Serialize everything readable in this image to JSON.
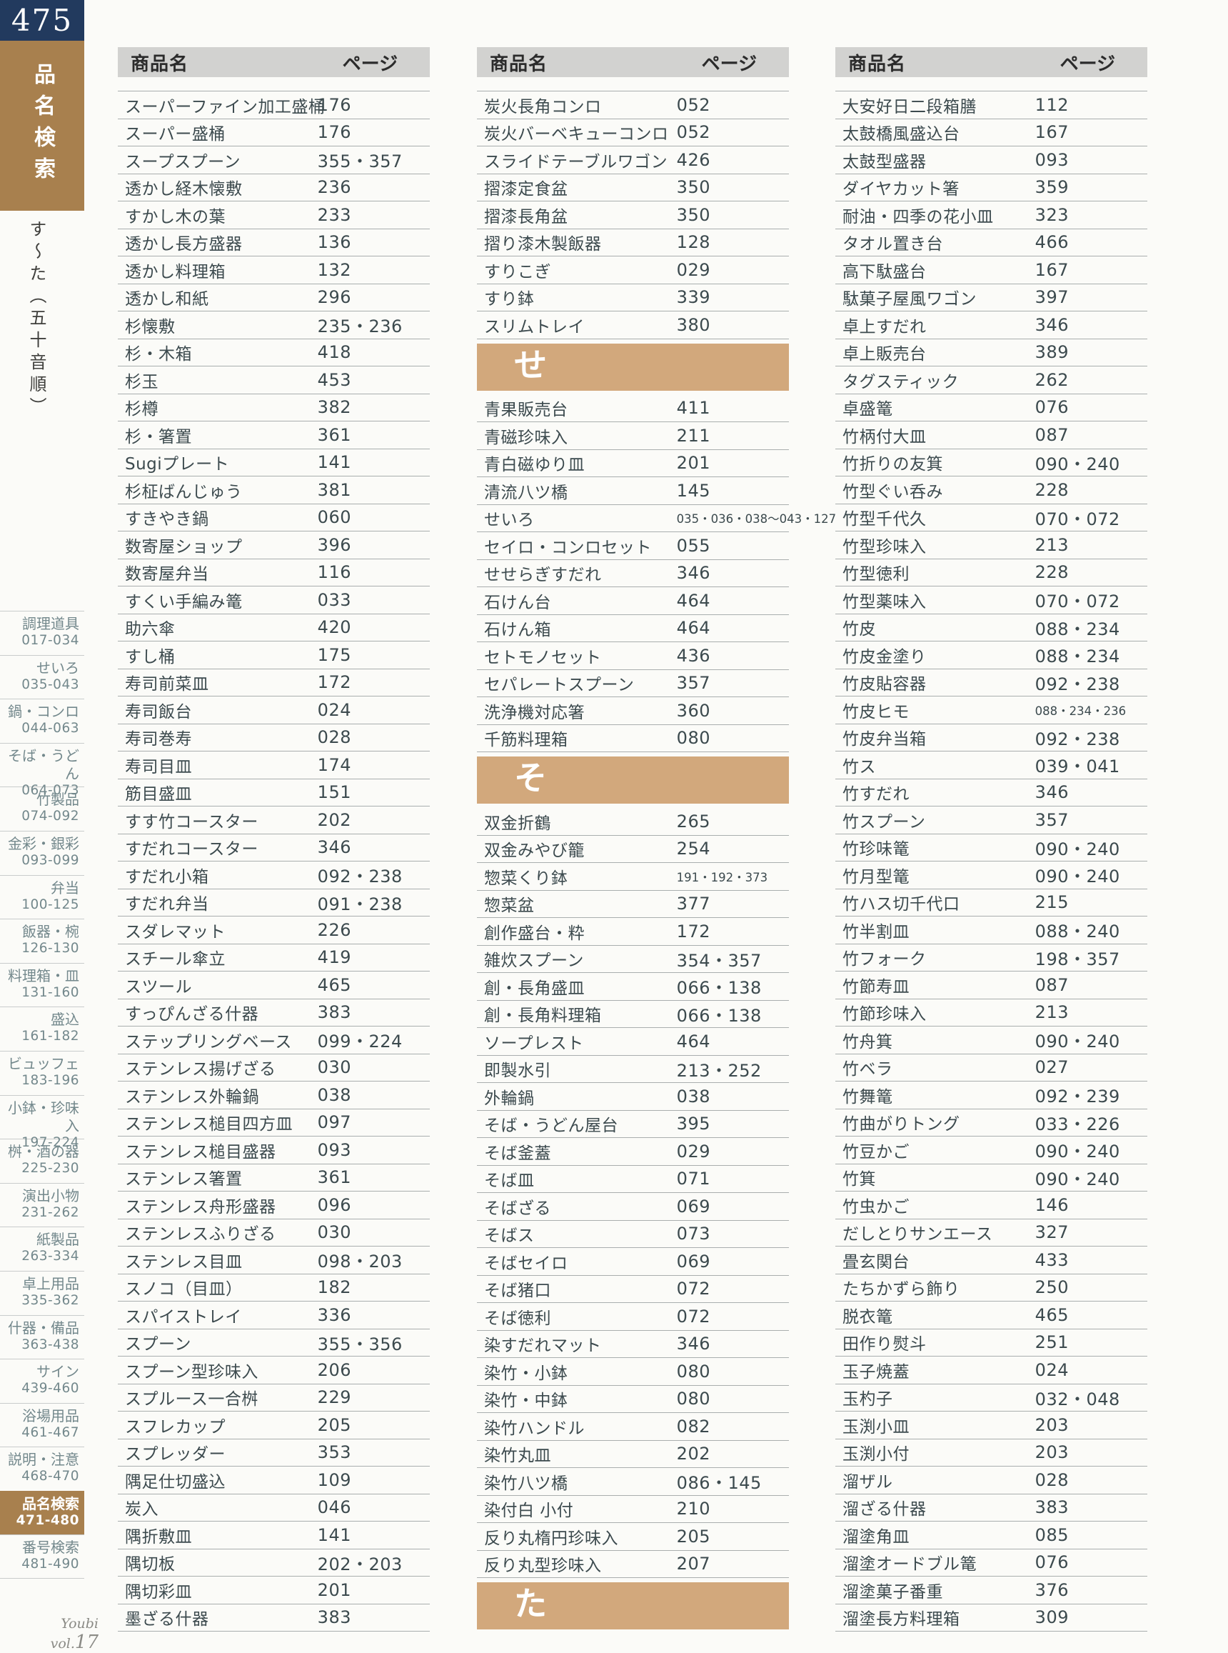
{
  "colors": {
    "navy": "#223a5e",
    "brown": "#a8804e",
    "tan": "#d2a87c",
    "header_bg": "#d2d2d0",
    "row_text": "#3c4a4e",
    "line": "#a9aeae",
    "category_text": "#73888c",
    "background": "#fbfbf8"
  },
  "sidebar": {
    "page_number": "475",
    "title": "品名検索",
    "subtitle": "す〜た（五十音順）",
    "footer_label": "Youbi vol.",
    "footer_number": "17",
    "categories": [
      {
        "label": "調理道具",
        "range": "017-034",
        "active": false
      },
      {
        "label": "せいろ",
        "range": "035-043",
        "active": false
      },
      {
        "label": "鍋・コンロ",
        "range": "044-063",
        "active": false
      },
      {
        "label": "そば・うどん",
        "range": "064-073",
        "active": false
      },
      {
        "label": "竹製品",
        "range": "074-092",
        "active": false
      },
      {
        "label": "金彩・銀彩",
        "range": "093-099",
        "active": false
      },
      {
        "label": "弁当",
        "range": "100-125",
        "active": false
      },
      {
        "label": "飯器・椀",
        "range": "126-130",
        "active": false
      },
      {
        "label": "料理箱・皿",
        "range": "131-160",
        "active": false
      },
      {
        "label": "盛込",
        "range": "161-182",
        "active": false
      },
      {
        "label": "ビュッフェ",
        "range": "183-196",
        "active": false
      },
      {
        "label": "小鉢・珍味入",
        "range": "197-224",
        "active": false
      },
      {
        "label": "桝・酒の器",
        "range": "225-230",
        "active": false
      },
      {
        "label": "演出小物",
        "range": "231-262",
        "active": false
      },
      {
        "label": "紙製品",
        "range": "263-334",
        "active": false
      },
      {
        "label": "卓上用品",
        "range": "335-362",
        "active": false
      },
      {
        "label": "什器・備品",
        "range": "363-438",
        "active": false
      },
      {
        "label": "サイン",
        "range": "439-460",
        "active": false
      },
      {
        "label": "浴場用品",
        "range": "461-467",
        "active": false
      },
      {
        "label": "説明・注意",
        "range": "468-470",
        "active": false
      },
      {
        "label": "品名検索",
        "range": "471-480",
        "active": true
      },
      {
        "label": "番号検索",
        "range": "481-490",
        "active": false
      }
    ]
  },
  "columns": [
    {
      "header": {
        "product": "商品名",
        "page": "ページ"
      },
      "items": [
        {
          "type": "row",
          "name": "スーパーファイン加工盛桶",
          "page": "176"
        },
        {
          "type": "row",
          "name": "スーパー盛桶",
          "page": "176"
        },
        {
          "type": "row",
          "name": "スープスプーン",
          "page": "355・357"
        },
        {
          "type": "row",
          "name": "透かし経木懐敷",
          "page": "236"
        },
        {
          "type": "row",
          "name": "すかし木の葉",
          "page": "233"
        },
        {
          "type": "row",
          "name": "透かし長方盛器",
          "page": "136"
        },
        {
          "type": "row",
          "name": "透かし料理箱",
          "page": "132"
        },
        {
          "type": "row",
          "name": "透かし和紙",
          "page": "296"
        },
        {
          "type": "row",
          "name": "杉懐敷",
          "page": "235・236"
        },
        {
          "type": "row",
          "name": "杉・木箱",
          "page": "418"
        },
        {
          "type": "row",
          "name": "杉玉",
          "page": "453"
        },
        {
          "type": "row",
          "name": "杉樽",
          "page": "382"
        },
        {
          "type": "row",
          "name": "杉・箸置",
          "page": "361"
        },
        {
          "type": "row",
          "name": "Sugiプレート",
          "page": "141"
        },
        {
          "type": "row",
          "name": "杉柾ばんじゅう",
          "page": "381"
        },
        {
          "type": "row",
          "name": "すきやき鍋",
          "page": "060"
        },
        {
          "type": "row",
          "name": "数寄屋ショップ",
          "page": "396"
        },
        {
          "type": "row",
          "name": "数寄屋弁当",
          "page": "116"
        },
        {
          "type": "row",
          "name": "すくい手編み篭",
          "page": "033"
        },
        {
          "type": "row",
          "name": "助六傘",
          "page": "420"
        },
        {
          "type": "row",
          "name": "すし桶",
          "page": "175"
        },
        {
          "type": "row",
          "name": "寿司前菜皿",
          "page": "172"
        },
        {
          "type": "row",
          "name": "寿司飯台",
          "page": "024"
        },
        {
          "type": "row",
          "name": "寿司巻寿",
          "page": "028"
        },
        {
          "type": "row",
          "name": "寿司目皿",
          "page": "174"
        },
        {
          "type": "row",
          "name": "筋目盛皿",
          "page": "151"
        },
        {
          "type": "row",
          "name": "すす竹コースター",
          "page": "202"
        },
        {
          "type": "row",
          "name": "すだれコースター",
          "page": "346"
        },
        {
          "type": "row",
          "name": "すだれ小箱",
          "page": "092・238"
        },
        {
          "type": "row",
          "name": "すだれ弁当",
          "page": "091・238"
        },
        {
          "type": "row",
          "name": "スダレマット",
          "page": "226"
        },
        {
          "type": "row",
          "name": "スチール傘立",
          "page": "419"
        },
        {
          "type": "row",
          "name": "スツール",
          "page": "465"
        },
        {
          "type": "row",
          "name": "すっぴんざる什器",
          "page": "383"
        },
        {
          "type": "row",
          "name": "ステップリングベース",
          "page": "099・224"
        },
        {
          "type": "row",
          "name": "ステンレス揚げざる",
          "page": "030"
        },
        {
          "type": "row",
          "name": "ステンレス外輪鍋",
          "page": "038"
        },
        {
          "type": "row",
          "name": "ステンレス槌目四方皿",
          "page": "097"
        },
        {
          "type": "row",
          "name": "ステンレス槌目盛器",
          "page": "093"
        },
        {
          "type": "row",
          "name": "ステンレス箸置",
          "page": "361"
        },
        {
          "type": "row",
          "name": "ステンレス舟形盛器",
          "page": "096"
        },
        {
          "type": "row",
          "name": "ステンレスふりざる",
          "page": "030"
        },
        {
          "type": "row",
          "name": "ステンレス目皿",
          "page": "098・203"
        },
        {
          "type": "row",
          "name": "スノコ（目皿）",
          "page": "182"
        },
        {
          "type": "row",
          "name": "スパイストレイ",
          "page": "336"
        },
        {
          "type": "row",
          "name": "スプーン",
          "page": "355・356"
        },
        {
          "type": "row",
          "name": "スプーン型珍味入",
          "page": "206"
        },
        {
          "type": "row",
          "name": "スプルース一合桝",
          "page": "229"
        },
        {
          "type": "row",
          "name": "スフレカップ",
          "page": "205"
        },
        {
          "type": "row",
          "name": "スプレッダー",
          "page": "353"
        },
        {
          "type": "row",
          "name": "隅足仕切盛込",
          "page": "109"
        },
        {
          "type": "row",
          "name": "炭入",
          "page": "046"
        },
        {
          "type": "row",
          "name": "隅折敷皿",
          "page": "141"
        },
        {
          "type": "row",
          "name": "隅切板",
          "page": "202・203"
        },
        {
          "type": "row",
          "name": "隅切彩皿",
          "page": "201"
        },
        {
          "type": "row",
          "name": "墨ざる什器",
          "page": "383"
        }
      ]
    },
    {
      "header": {
        "product": "商品名",
        "page": "ページ"
      },
      "items": [
        {
          "type": "row",
          "name": "炭火長角コンロ",
          "page": "052"
        },
        {
          "type": "row",
          "name": "炭火バーベキューコンロ",
          "page": "052"
        },
        {
          "type": "row",
          "name": "スライドテーブルワゴン",
          "page": "426"
        },
        {
          "type": "row",
          "name": "摺漆定食盆",
          "page": "350"
        },
        {
          "type": "row",
          "name": "摺漆長角盆",
          "page": "350"
        },
        {
          "type": "row",
          "name": "摺り漆木製飯器",
          "page": "128"
        },
        {
          "type": "row",
          "name": "すりこぎ",
          "page": "029"
        },
        {
          "type": "row",
          "name": "すり鉢",
          "page": "339"
        },
        {
          "type": "row",
          "name": "スリムトレイ",
          "page": "380"
        },
        {
          "type": "section",
          "label": "せ"
        },
        {
          "type": "row",
          "name": "青果販売台",
          "page": "411"
        },
        {
          "type": "row",
          "name": "青磁珍味入",
          "page": "211"
        },
        {
          "type": "row",
          "name": "青白磁ゆり皿",
          "page": "201"
        },
        {
          "type": "row",
          "name": "清流八ツ橋",
          "page": "145"
        },
        {
          "type": "row",
          "name": "せいろ",
          "page": "035・036・038〜043・127"
        },
        {
          "type": "row",
          "name": "セイロ・コンロセット",
          "page": "055"
        },
        {
          "type": "row",
          "name": "せせらぎすだれ",
          "page": "346"
        },
        {
          "type": "row",
          "name": "石けん台",
          "page": "464"
        },
        {
          "type": "row",
          "name": "石けん箱",
          "page": "464"
        },
        {
          "type": "row",
          "name": "セトモノセット",
          "page": "436"
        },
        {
          "type": "row",
          "name": "セパレートスプーン",
          "page": "357"
        },
        {
          "type": "row",
          "name": "洗浄機対応箸",
          "page": "360"
        },
        {
          "type": "row",
          "name": "千筋料理箱",
          "page": "080"
        },
        {
          "type": "section",
          "label": "そ"
        },
        {
          "type": "row",
          "name": "双金折鶴",
          "page": "265"
        },
        {
          "type": "row",
          "name": "双金みやび籠",
          "page": "254"
        },
        {
          "type": "row",
          "name": "惣菜くり鉢",
          "page": "191・192・373"
        },
        {
          "type": "row",
          "name": "惣菜盆",
          "page": "377"
        },
        {
          "type": "row",
          "name": "創作盛台・粋",
          "page": "172"
        },
        {
          "type": "row",
          "name": "雑炊スプーン",
          "page": "354・357"
        },
        {
          "type": "row",
          "name": "創・長角盛皿",
          "page": "066・138"
        },
        {
          "type": "row",
          "name": "創・長角料理箱",
          "page": "066・138"
        },
        {
          "type": "row",
          "name": "ソープレスト",
          "page": "464"
        },
        {
          "type": "row",
          "name": "即製水引",
          "page": "213・252"
        },
        {
          "type": "row",
          "name": "外輪鍋",
          "page": "038"
        },
        {
          "type": "row",
          "name": "そば・うどん屋台",
          "page": "395"
        },
        {
          "type": "row",
          "name": "そば釜蓋",
          "page": "029"
        },
        {
          "type": "row",
          "name": "そば皿",
          "page": "071"
        },
        {
          "type": "row",
          "name": "そばざる",
          "page": "069"
        },
        {
          "type": "row",
          "name": "そばス",
          "page": "073"
        },
        {
          "type": "row",
          "name": "そばセイロ",
          "page": "069"
        },
        {
          "type": "row",
          "name": "そば猪口",
          "page": "072"
        },
        {
          "type": "row",
          "name": "そば徳利",
          "page": "072"
        },
        {
          "type": "row",
          "name": "染すだれマット",
          "page": "346"
        },
        {
          "type": "row",
          "name": "染竹・小鉢",
          "page": "080"
        },
        {
          "type": "row",
          "name": "染竹・中鉢",
          "page": "080"
        },
        {
          "type": "row",
          "name": "染竹ハンドル",
          "page": "082"
        },
        {
          "type": "row",
          "name": "染竹丸皿",
          "page": "202"
        },
        {
          "type": "row",
          "name": "染竹八ツ橋",
          "page": "086・145"
        },
        {
          "type": "row",
          "name": "染付白 小付",
          "page": "210"
        },
        {
          "type": "row",
          "name": "反り丸楕円珍味入",
          "page": "205"
        },
        {
          "type": "row",
          "name": "反り丸型珍味入",
          "page": "207"
        },
        {
          "type": "section",
          "label": "た"
        }
      ]
    },
    {
      "header": {
        "product": "商品名",
        "page": "ページ"
      },
      "items": [
        {
          "type": "row",
          "name": "大安好日二段箱膳",
          "page": "112"
        },
        {
          "type": "row",
          "name": "太鼓橋風盛込台",
          "page": "167"
        },
        {
          "type": "row",
          "name": "太鼓型盛器",
          "page": "093"
        },
        {
          "type": "row",
          "name": "ダイヤカット箸",
          "page": "359"
        },
        {
          "type": "row",
          "name": "耐油・四季の花小皿",
          "page": "323"
        },
        {
          "type": "row",
          "name": "タオル置き台",
          "page": "466"
        },
        {
          "type": "row",
          "name": "高下駄盛台",
          "page": "167"
        },
        {
          "type": "row",
          "name": "駄菓子屋風ワゴン",
          "page": "397"
        },
        {
          "type": "row",
          "name": "卓上すだれ",
          "page": "346"
        },
        {
          "type": "row",
          "name": "卓上販売台",
          "page": "389"
        },
        {
          "type": "row",
          "name": "タグスティック",
          "page": "262"
        },
        {
          "type": "row",
          "name": "卓盛篭",
          "page": "076"
        },
        {
          "type": "row",
          "name": "竹柄付大皿",
          "page": "087"
        },
        {
          "type": "row",
          "name": "竹折りの友箕",
          "page": "090・240"
        },
        {
          "type": "row",
          "name": "竹型ぐい呑み",
          "page": "228"
        },
        {
          "type": "row",
          "name": "竹型千代久",
          "page": "070・072"
        },
        {
          "type": "row",
          "name": "竹型珍味入",
          "page": "213"
        },
        {
          "type": "row",
          "name": "竹型徳利",
          "page": "228"
        },
        {
          "type": "row",
          "name": "竹型薬味入",
          "page": "070・072"
        },
        {
          "type": "row",
          "name": "竹皮",
          "page": "088・234"
        },
        {
          "type": "row",
          "name": "竹皮金塗り",
          "page": "088・234"
        },
        {
          "type": "row",
          "name": "竹皮貼容器",
          "page": "092・238"
        },
        {
          "type": "row",
          "name": "竹皮ヒモ",
          "page": "088・234・236"
        },
        {
          "type": "row",
          "name": "竹皮弁当箱",
          "page": "092・238"
        },
        {
          "type": "row",
          "name": "竹ス",
          "page": "039・041"
        },
        {
          "type": "row",
          "name": "竹すだれ",
          "page": "346"
        },
        {
          "type": "row",
          "name": "竹スプーン",
          "page": "357"
        },
        {
          "type": "row",
          "name": "竹珍味篭",
          "page": "090・240"
        },
        {
          "type": "row",
          "name": "竹月型篭",
          "page": "090・240"
        },
        {
          "type": "row",
          "name": "竹ハス切千代口",
          "page": "215"
        },
        {
          "type": "row",
          "name": "竹半割皿",
          "page": "088・240"
        },
        {
          "type": "row",
          "name": "竹フォーク",
          "page": "198・357"
        },
        {
          "type": "row",
          "name": "竹節寿皿",
          "page": "087"
        },
        {
          "type": "row",
          "name": "竹節珍味入",
          "page": "213"
        },
        {
          "type": "row",
          "name": "竹舟箕",
          "page": "090・240"
        },
        {
          "type": "row",
          "name": "竹ベラ",
          "page": "027"
        },
        {
          "type": "row",
          "name": "竹舞篭",
          "page": "092・239"
        },
        {
          "type": "row",
          "name": "竹曲がりトング",
          "page": "033・226"
        },
        {
          "type": "row",
          "name": "竹豆かご",
          "page": "090・240"
        },
        {
          "type": "row",
          "name": "竹箕",
          "page": "090・240"
        },
        {
          "type": "row",
          "name": "竹虫かご",
          "page": "146"
        },
        {
          "type": "row",
          "name": "だしとりサンエース",
          "page": "327"
        },
        {
          "type": "row",
          "name": "畳玄関台",
          "page": "433"
        },
        {
          "type": "row",
          "name": "たちかずら飾り",
          "page": "250"
        },
        {
          "type": "row",
          "name": "脱衣篭",
          "page": "465"
        },
        {
          "type": "row",
          "name": "田作り熨斗",
          "page": "251"
        },
        {
          "type": "row",
          "name": "玉子焼蓋",
          "page": "024"
        },
        {
          "type": "row",
          "name": "玉杓子",
          "page": "032・048"
        },
        {
          "type": "row",
          "name": "玉渕小皿",
          "page": "203"
        },
        {
          "type": "row",
          "name": "玉渕小付",
          "page": "203"
        },
        {
          "type": "row",
          "name": "溜ザル",
          "page": "028"
        },
        {
          "type": "row",
          "name": "溜ざる什器",
          "page": "383"
        },
        {
          "type": "row",
          "name": "溜塗角皿",
          "page": "085"
        },
        {
          "type": "row",
          "name": "溜塗オードブル篭",
          "page": "076"
        },
        {
          "type": "row",
          "name": "溜塗菓子番重",
          "page": "376"
        },
        {
          "type": "row",
          "name": "溜塗長方料理箱",
          "page": "309"
        }
      ]
    }
  ]
}
